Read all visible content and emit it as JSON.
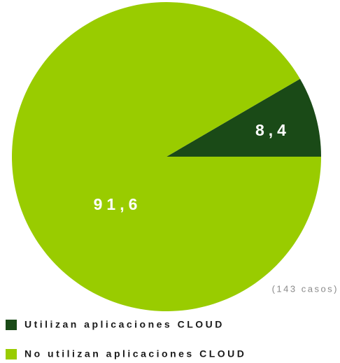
{
  "chart_data": {
    "type": "pie",
    "categories": [
      "Utilizan aplicaciones CLOUD",
      "No utilizan aplicaciones CLOUD"
    ],
    "values": [
      8.4,
      91.6
    ],
    "value_labels": [
      "8,4",
      "91,6"
    ],
    "colors": [
      "#1a4a17",
      "#99cc00"
    ],
    "annotation": "(143 casos)",
    "legend": "bottom-left"
  }
}
